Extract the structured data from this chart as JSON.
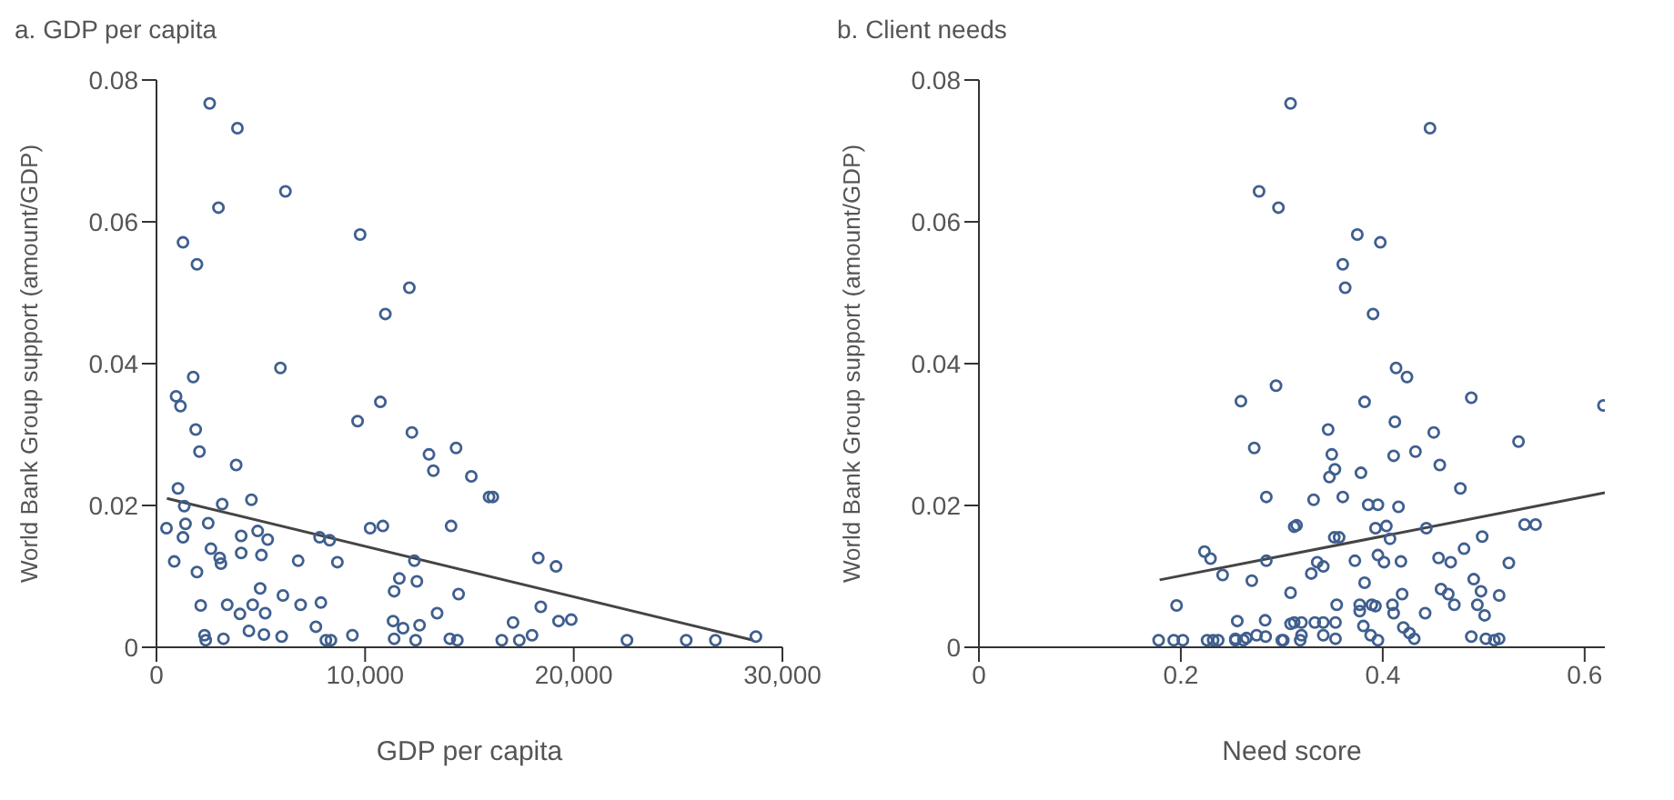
{
  "chart_data": [
    {
      "type": "scatter",
      "title": "a. GDP per capita",
      "xlabel": "GDP per capita",
      "ylabel": "World Bank Group support (amount/GDP)",
      "xlim": [
        0,
        30000
      ],
      "ylim": [
        0,
        0.08
      ],
      "xticks": [
        0,
        {
          "value": 10000,
          "label": "10,000"
        },
        {
          "value": 20000,
          "label": "20,000"
        },
        {
          "value": 30000,
          "label": "30,000"
        }
      ],
      "yticks": [
        0,
        0.02,
        0.04,
        0.06,
        0.08
      ],
      "grid": false,
      "series": [
        {
          "marker": "circle",
          "color": "#3f5f8f",
          "x": [
            2550,
            3880,
            6180,
            2970,
            1270,
            1940,
            9760,
            12120,
            10970,
            1760,
            5940,
            940,
            1150,
            1880,
            2060,
            3820,
            9640,
            10730,
            12240,
            13060,
            13270,
            14360,
            15090,
            1030,
            1330,
            3150,
            4550,
            480,
            1390,
            1270,
            2480,
            4060,
            4850,
            5330,
            4060,
            5030,
            2610,
            3030,
            3090,
            850,
            1940,
            6790,
            7820,
            8300,
            8670,
            10240,
            10850,
            14120,
            12360,
            11640,
            12480,
            11390,
            14480,
            13450,
            4970,
            6060,
            2120,
            3390,
            4000,
            4610,
            5210,
            6910,
            7880,
            2300,
            2360,
            3210,
            4430,
            5150,
            6000,
            7640,
            8120,
            8360,
            9390,
            11340,
            11820,
            12610,
            11390,
            12420,
            14060,
            14420,
            15940,
            16120,
            18300,
            19150,
            18420,
            17090,
            18000,
            19270,
            19880,
            16550,
            17390,
            22550,
            25390,
            26790,
            28730
          ],
          "values": [
            0.0767,
            0.0732,
            0.0643,
            0.062,
            0.0571,
            0.054,
            0.0582,
            0.0507,
            0.047,
            0.0381,
            0.0394,
            0.0354,
            0.034,
            0.0307,
            0.0276,
            0.0257,
            0.0319,
            0.0346,
            0.0303,
            0.0272,
            0.0249,
            0.0281,
            0.0241,
            0.0224,
            0.0199,
            0.0202,
            0.0208,
            0.0168,
            0.0174,
            0.0155,
            0.0175,
            0.0157,
            0.0164,
            0.0152,
            0.0133,
            0.013,
            0.0139,
            0.0126,
            0.0118,
            0.0121,
            0.0106,
            0.0122,
            0.0155,
            0.0151,
            0.012,
            0.0168,
            0.0171,
            0.0171,
            0.0122,
            0.0097,
            0.0093,
            0.0079,
            0.0075,
            0.0048,
            0.0083,
            0.0073,
            0.0059,
            0.006,
            0.0047,
            0.006,
            0.0048,
            0.006,
            0.0063,
            0.0017,
            0.001,
            0.0012,
            0.0023,
            0.0018,
            0.0015,
            0.0029,
            0.001,
            0.001,
            0.0017,
            0.0037,
            0.0027,
            0.0031,
            0.0012,
            0.001,
            0.0012,
            0.001,
            0.0212,
            0.0212,
            0.0126,
            0.0114,
            0.0057,
            0.0035,
            0.0017,
            0.0037,
            0.0039,
            0.001,
            0.001,
            0.001,
            0.001,
            0.001,
            0.0015
          ]
        },
        {
          "type": "line",
          "color": "#444444",
          "x": [
            500,
            28600
          ],
          "values": [
            0.021,
            0.001
          ]
        }
      ]
    },
    {
      "type": "scatter",
      "title": "b. Client needs",
      "xlabel": "Need score",
      "ylabel": "World Bank Group support (amount/GDP)",
      "xlim": [
        0,
        0.62
      ],
      "ylim": [
        0,
        0.08
      ],
      "xticks": [
        0,
        0.2,
        0.4,
        0.6
      ],
      "yticks": [
        0,
        0.02,
        0.04,
        0.06,
        0.08
      ],
      "grid": false,
      "series": [
        {
          "marker": "circle",
          "color": "#3f5f8f",
          "x": [
            0.3087,
            0.2775,
            0.2967,
            0.2943,
            0.2595,
            0.2727,
            0.2847,
            0.3123,
            0.2234,
            0.2294,
            0.2414,
            0.2703,
            0.2847,
            0.1958,
            0.3087,
            0.2559,
            0.2835,
            0.3087,
            0.178,
            0.193,
            0.202,
            0.226,
            0.232,
            0.237,
            0.254,
            0.262,
            0.3,
            0.254,
            0.265,
            0.275,
            0.284,
            0.4468,
            0.3748,
            0.3976,
            0.3604,
            0.3628,
            0.3904,
            0.4132,
            0.424,
            0.4877,
            0.382,
            0.3459,
            0.412,
            0.4505,
            0.5345,
            0.3495,
            0.3526,
            0.3472,
            0.3784,
            0.4108,
            0.4324,
            0.4565,
            0.4769,
            0.3315,
            0.3604,
            0.3856,
            0.3952,
            0.4156,
            0.3147,
            0.3928,
            0.4036,
            0.4072,
            0.4432,
            0.352,
            0.3568,
            0.5405,
            0.5514,
            0.4985,
            0.4805,
            0.4553,
            0.4673,
            0.5249,
            0.3724,
            0.3952,
            0.4012,
            0.418,
            0.3351,
            0.3411,
            0.3292,
            0.382,
            0.3544,
            0.3772,
            0.3772,
            0.3892,
            0.3928,
            0.4096,
            0.4108,
            0.4192,
            0.442,
            0.4577,
            0.4649,
            0.4709,
            0.4901,
            0.4973,
            0.4937,
            0.5009,
            0.5153,
            0.3123,
            0.3195,
            0.3327,
            0.3411,
            0.3532,
            0.3195,
            0.3411,
            0.3532,
            0.388,
            0.3808,
            0.4204,
            0.4264,
            0.3015,
            0.3183,
            0.3952,
            0.4312,
            0.4877,
            0.5021,
            0.5105,
            0.5153,
            0.6186
          ],
          "values": [
            0.0767,
            0.0643,
            0.062,
            0.0369,
            0.0347,
            0.0281,
            0.0212,
            0.017,
            0.0135,
            0.0125,
            0.0102,
            0.0094,
            0.0122,
            0.0059,
            0.0077,
            0.0037,
            0.0038,
            0.0033,
            0.001,
            0.001,
            0.001,
            0.001,
            0.001,
            0.001,
            0.001,
            0.001,
            0.001,
            0.0012,
            0.0013,
            0.0017,
            0.0015,
            0.0732,
            0.0582,
            0.0571,
            0.054,
            0.0507,
            0.047,
            0.0394,
            0.0381,
            0.0352,
            0.0346,
            0.0307,
            0.0318,
            0.0303,
            0.029,
            0.0272,
            0.0251,
            0.024,
            0.0246,
            0.027,
            0.0276,
            0.0257,
            0.0224,
            0.0208,
            0.0212,
            0.0201,
            0.0201,
            0.0198,
            0.0172,
            0.0168,
            0.0171,
            0.0153,
            0.0168,
            0.0155,
            0.0155,
            0.0173,
            0.0173,
            0.0156,
            0.0139,
            0.0126,
            0.012,
            0.0119,
            0.0122,
            0.013,
            0.012,
            0.0121,
            0.012,
            0.0114,
            0.0104,
            0.0091,
            0.006,
            0.006,
            0.0051,
            0.006,
            0.0058,
            0.006,
            0.0048,
            0.0075,
            0.0048,
            0.0082,
            0.0075,
            0.006,
            0.0096,
            0.0079,
            0.006,
            0.0045,
            0.0073,
            0.0035,
            0.0035,
            0.0035,
            0.0035,
            0.0035,
            0.0017,
            0.0017,
            0.0012,
            0.0017,
            0.003,
            0.0028,
            0.002,
            0.001,
            0.001,
            0.001,
            0.0012,
            0.0015,
            0.0012,
            0.001,
            0.0012,
            0.0341
          ]
        },
        {
          "type": "line",
          "color": "#444444",
          "x": [
            0.179,
            0.62
          ],
          "values": [
            0.0095,
            0.0218
          ]
        }
      ]
    }
  ]
}
